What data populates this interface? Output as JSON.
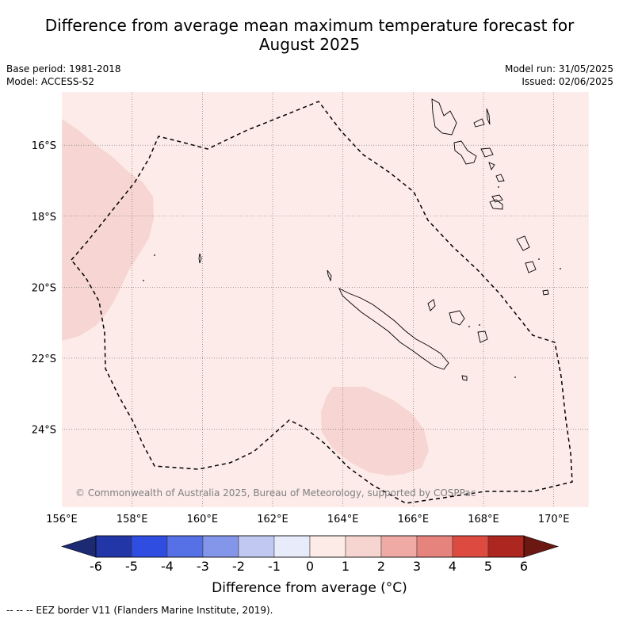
{
  "header": {
    "title_line1": "Difference from average mean maximum temperature forecast for",
    "title_line2": "August 2025",
    "base_period": "Base period: 1981-2018",
    "model": "Model: ACCESS-S2",
    "model_run": "Model run: 31/05/2025",
    "issued": "Issued: 02/06/2025"
  },
  "map": {
    "lon_range": [
      156,
      171
    ],
    "lat_range": [
      -26.2,
      -14.5
    ],
    "background_color": "#fcebe9",
    "anomaly_patch_color": "#f6d5d2",
    "lon_ticks": [
      "156°E",
      "158°E",
      "160°E",
      "162°E",
      "164°E",
      "166°E",
      "168°E",
      "170°E"
    ],
    "lat_ticks": [
      "16°S",
      "18°S",
      "20°S",
      "22°S",
      "24°S"
    ],
    "copyright": "© Commonwealth of Australia 2025, Bureau of Meteorology, supported by COSPPac",
    "eez_border_style": "dashed"
  },
  "colorbar": {
    "title": "Difference from average (°C)",
    "tick_labels": [
      "-6",
      "-5",
      "-4",
      "-3",
      "-2",
      "-1",
      "0",
      "1",
      "2",
      "3",
      "4",
      "5",
      "6"
    ],
    "under_color": "#1c2a73",
    "over_color": "#6b1812",
    "colors": [
      "#2236a8",
      "#2f4de0",
      "#5670e6",
      "#8496ea",
      "#c1c9f3",
      "#e8ecfa",
      "#fcebe7",
      "#f6d5d1",
      "#efaaa5",
      "#e6837c",
      "#dd4a40",
      "#ad261f"
    ]
  },
  "footer": {
    "legend_text": "--  --  -- EEZ border V11 (Flanders Marine Institute, 2019)."
  }
}
